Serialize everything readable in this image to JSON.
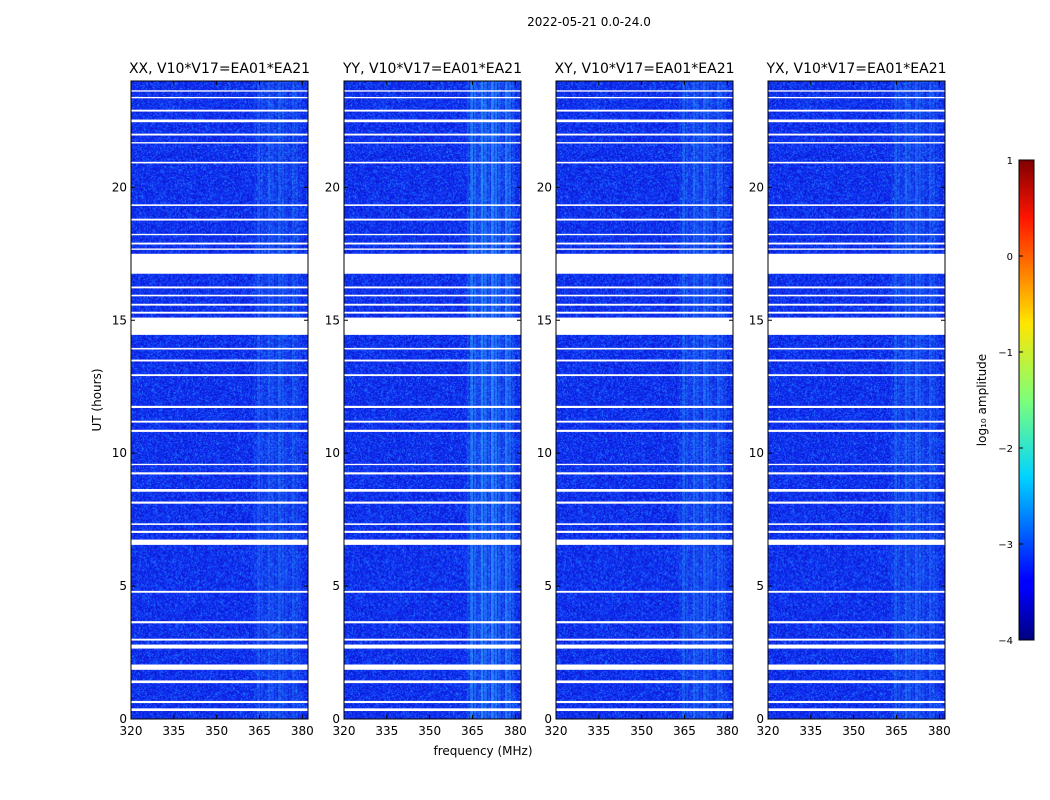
{
  "chart_data": {
    "type": "heatmap",
    "suptitle": "2022-05-21 0.0-24.0",
    "xlabel": "frequency (MHz)",
    "ylabel": "UT (hours)",
    "xlim": [
      320,
      382
    ],
    "ylim": [
      0,
      24
    ],
    "xticks": [
      320,
      335,
      350,
      365,
      380
    ],
    "yticks": [
      0,
      5,
      10,
      15,
      20
    ],
    "panels": [
      {
        "title": "XX, V10*V17=EA01*EA21",
        "band_strength": 0.45
      },
      {
        "title": "YY, V10*V17=EA01*EA21",
        "band_strength": 0.9
      },
      {
        "title": "XY, V10*V17=EA01*EA21",
        "band_strength": 0.55
      },
      {
        "title": "YX, V10*V17=EA01*EA21",
        "band_strength": 0.5
      }
    ],
    "rfi_band_mhz": [
      363,
      380
    ],
    "flagged_ut_ranges": [
      [
        0.3,
        0.4
      ],
      [
        0.6,
        0.68
      ],
      [
        1.35,
        1.45
      ],
      [
        1.85,
        2.05
      ],
      [
        2.65,
        2.8
      ],
      [
        2.95,
        3.02
      ],
      [
        3.6,
        3.68
      ],
      [
        4.75,
        4.82
      ],
      [
        6.55,
        6.75
      ],
      [
        7.0,
        7.08
      ],
      [
        7.3,
        7.36
      ],
      [
        8.1,
        8.18
      ],
      [
        8.55,
        8.65
      ],
      [
        9.2,
        9.28
      ],
      [
        9.55,
        9.6
      ],
      [
        10.8,
        10.88
      ],
      [
        11.15,
        11.22
      ],
      [
        11.7,
        11.78
      ],
      [
        12.9,
        12.97
      ],
      [
        13.45,
        13.52
      ],
      [
        13.9,
        13.96
      ],
      [
        14.45,
        15.1
      ],
      [
        15.25,
        15.32
      ],
      [
        15.55,
        15.62
      ],
      [
        15.9,
        15.96
      ],
      [
        16.2,
        16.27
      ],
      [
        16.75,
        17.5
      ],
      [
        17.65,
        17.7
      ],
      [
        17.85,
        17.92
      ],
      [
        18.2,
        18.25
      ],
      [
        18.75,
        18.82
      ],
      [
        19.3,
        19.36
      ],
      [
        20.9,
        20.96
      ],
      [
        21.65,
        21.7
      ],
      [
        21.95,
        22.02
      ],
      [
        22.45,
        22.55
      ],
      [
        22.85,
        22.92
      ],
      [
        23.35,
        23.4
      ],
      [
        23.6,
        23.65
      ]
    ],
    "colorbar": {
      "label": "log₁₀ amplitude",
      "range": [
        -4,
        1
      ],
      "ticks": [
        "1",
        "0",
        "−1",
        "−2",
        "−3",
        "−4"
      ],
      "colormap": "jet"
    }
  }
}
